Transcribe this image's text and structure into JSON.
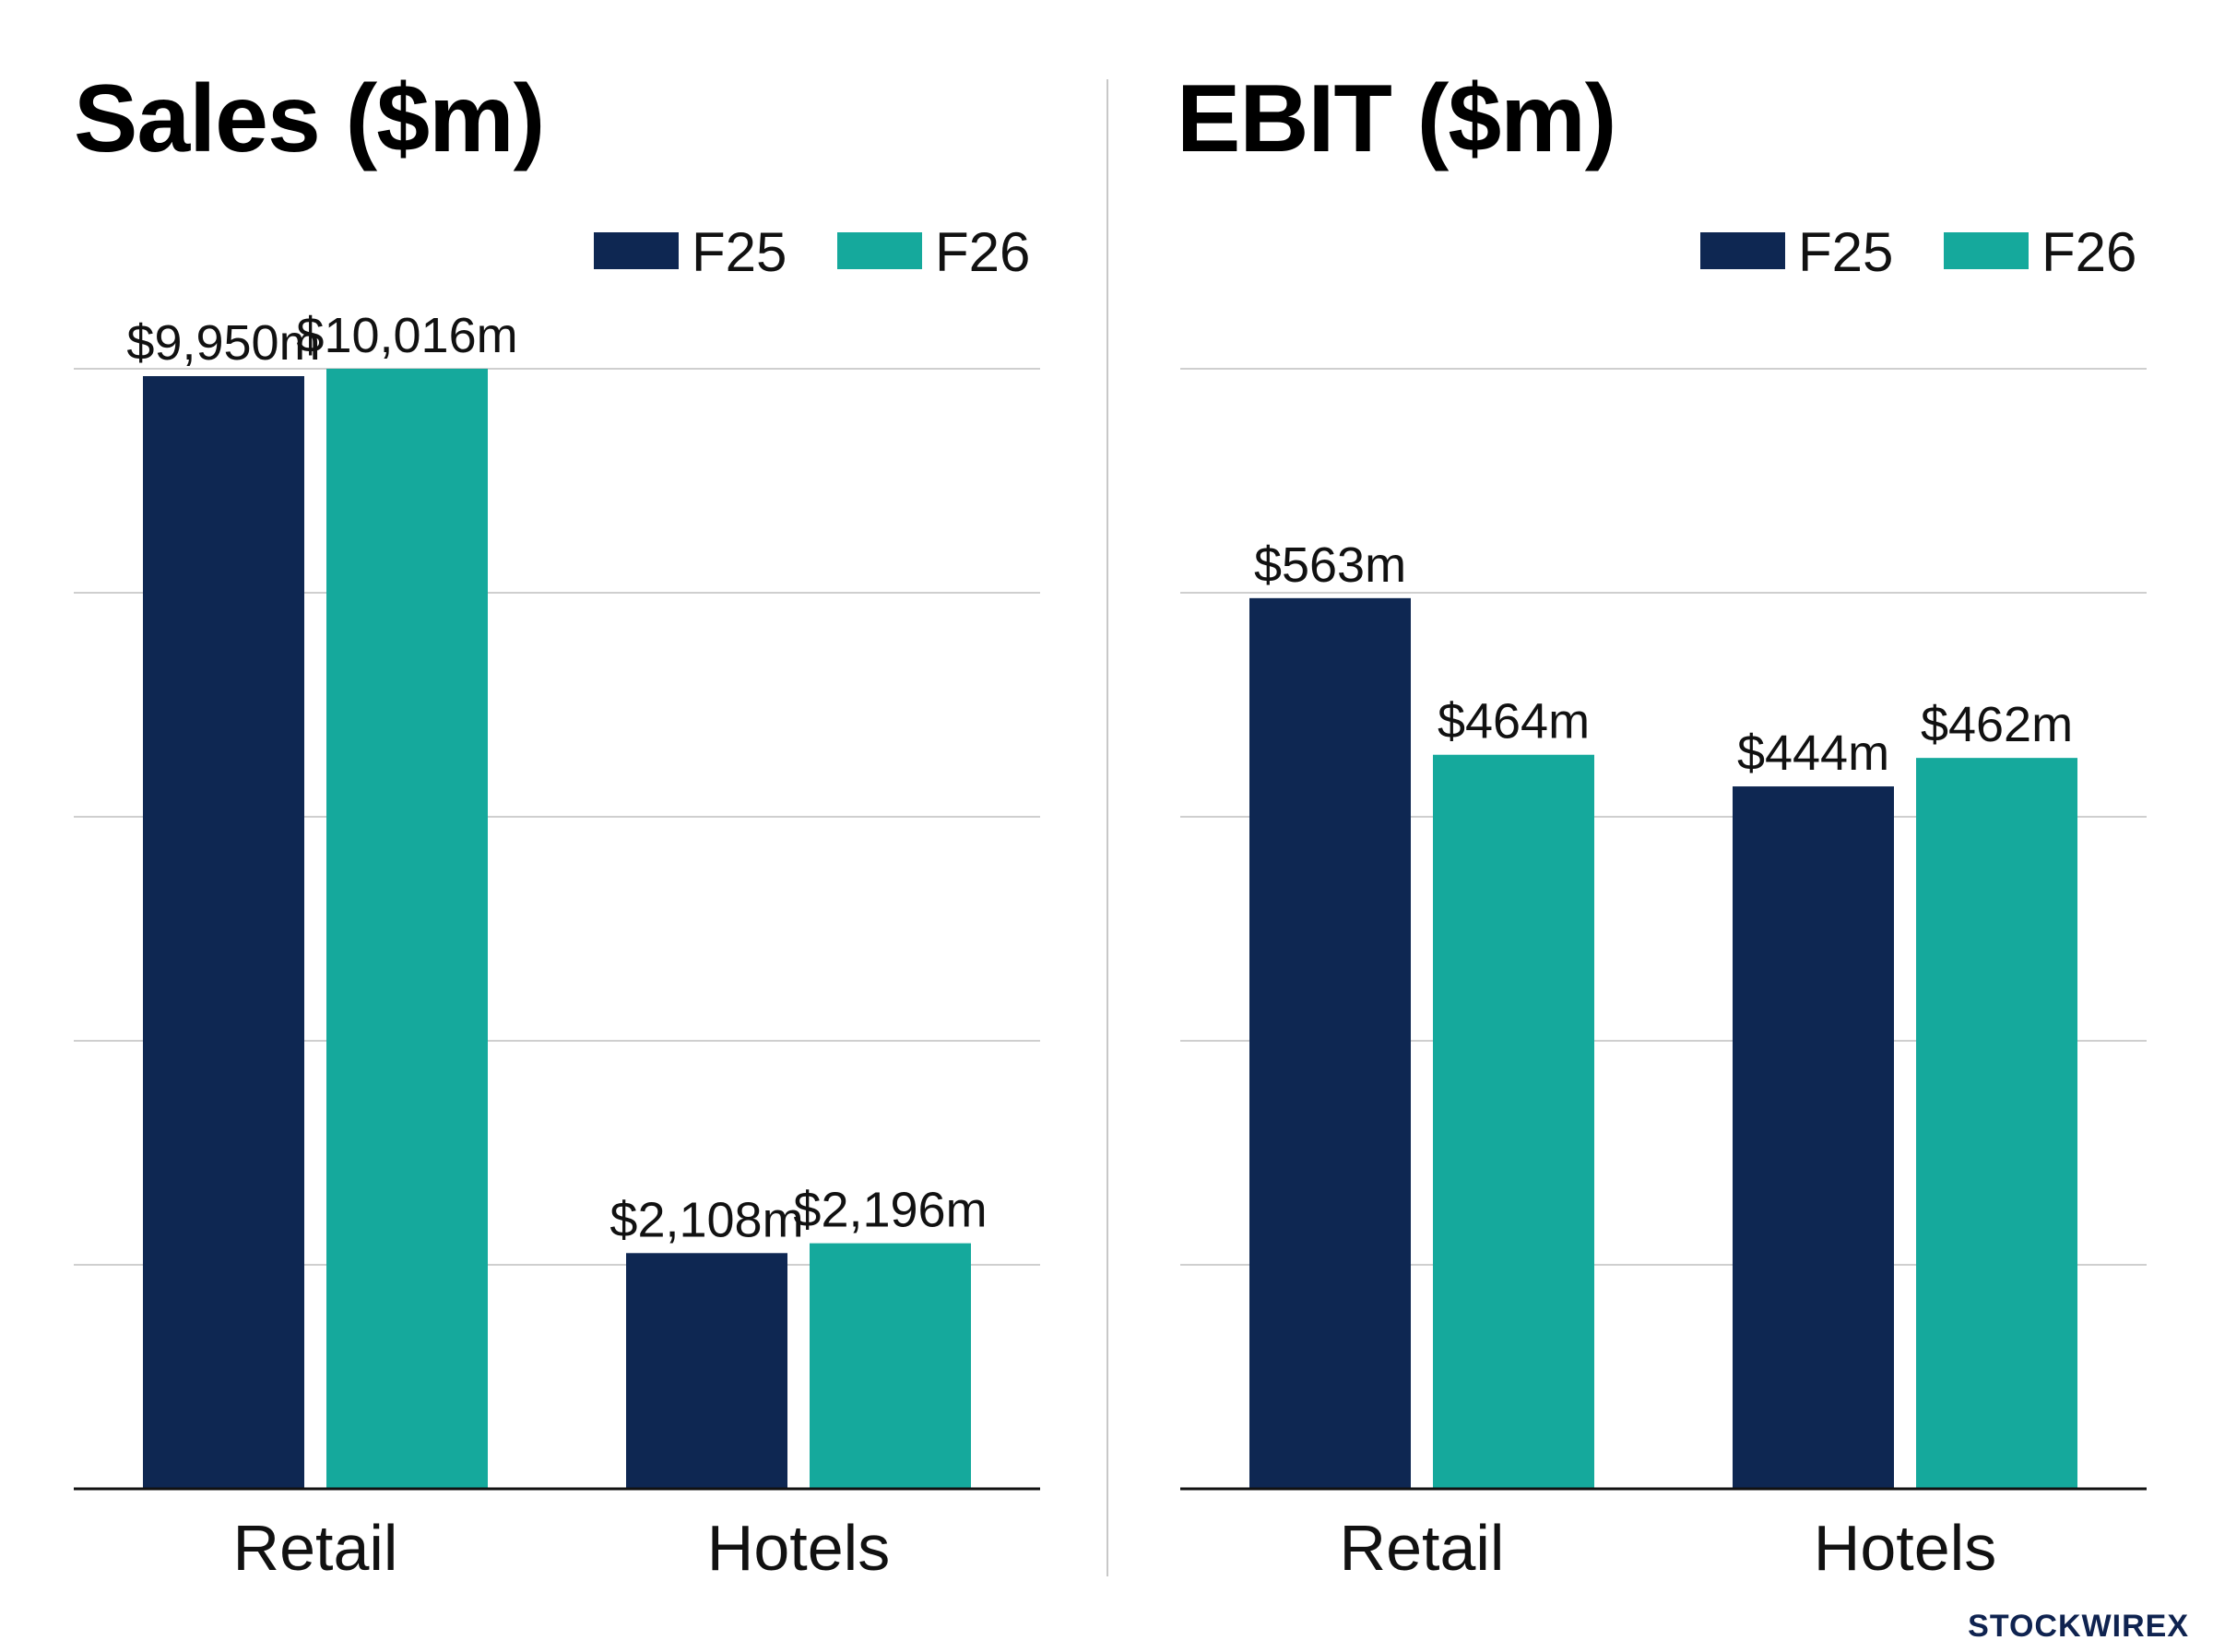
{
  "colors": {
    "f25": "#0e2752",
    "f26": "#15a99c",
    "grid": "#cfcfcf",
    "axis": "#111111",
    "text": "#111111"
  },
  "chart_data": [
    {
      "type": "bar",
      "title": "Sales ($m)",
      "categories": [
        "Retail",
        "Hotels"
      ],
      "series": [
        {
          "name": "F25",
          "values": [
            9950,
            2108
          ],
          "labels": [
            "$9,950m",
            "$2,108m"
          ]
        },
        {
          "name": "F26",
          "values": [
            10016,
            2196
          ],
          "labels": [
            "$10,016m",
            "$2,196m"
          ]
        }
      ],
      "ylim": [
        0,
        10016
      ],
      "grid": true,
      "legend": "top-right"
    },
    {
      "type": "bar",
      "title": "EBIT ($m)",
      "categories": [
        "Retail",
        "Hotels"
      ],
      "series": [
        {
          "name": "F25",
          "values": [
            563,
            444
          ],
          "labels": [
            "$563m",
            "$444m"
          ]
        },
        {
          "name": "F26",
          "values": [
            464,
            462
          ],
          "labels": [
            "$464m",
            "$462m"
          ]
        }
      ],
      "ylim": [
        0,
        708
      ],
      "grid": true,
      "legend": "top-right"
    }
  ],
  "brand": {
    "name": "STOCKWIRE",
    "mark": "X"
  }
}
